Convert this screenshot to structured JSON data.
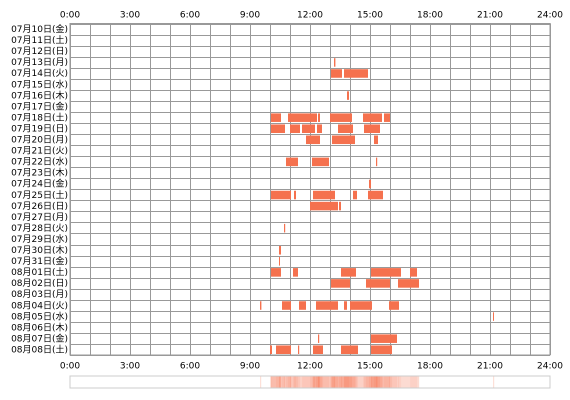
{
  "chart_data": {
    "type": "timeline",
    "color": "#f5714e",
    "xlim": [
      0,
      24
    ],
    "xticks": [
      {
        "value": 0,
        "label": "0:00"
      },
      {
        "value": 3,
        "label": "3:00"
      },
      {
        "value": 6,
        "label": "6:00"
      },
      {
        "value": 9,
        "label": "9:00"
      },
      {
        "value": 12,
        "label": "12:00"
      },
      {
        "value": 15,
        "label": "15:00"
      },
      {
        "value": 18,
        "label": "18:00"
      },
      {
        "value": 21,
        "label": "21:00"
      },
      {
        "value": 24,
        "label": "24:00"
      }
    ],
    "grid_xticks": [
      0,
      1,
      2,
      3,
      4,
      5,
      6,
      7,
      8,
      9,
      10,
      11,
      12,
      13,
      14,
      15,
      16,
      17,
      18,
      19,
      20,
      21,
      22,
      23,
      24
    ],
    "rows": [
      {
        "label": "07月10日(金)",
        "intervals": []
      },
      {
        "label": "07月11日(土)",
        "intervals": []
      },
      {
        "label": "07月12日(日)",
        "intervals": []
      },
      {
        "label": "07月13日(月)",
        "intervals": [
          [
            13.2,
            13.27
          ]
        ]
      },
      {
        "label": "07月14日(火)",
        "intervals": [
          [
            13.05,
            13.6
          ],
          [
            13.7,
            14.9
          ]
        ]
      },
      {
        "label": "07月15日(水)",
        "intervals": []
      },
      {
        "label": "07月16日(木)",
        "intervals": [
          [
            13.85,
            13.95
          ]
        ]
      },
      {
        "label": "07月17日(金)",
        "intervals": []
      },
      {
        "label": "07月18日(土)",
        "intervals": [
          [
            10.05,
            10.55
          ],
          [
            10.9,
            12.35
          ],
          [
            12.4,
            12.5
          ],
          [
            13.0,
            14.1
          ],
          [
            14.65,
            15.6
          ],
          [
            15.7,
            16.0
          ]
        ]
      },
      {
        "label": "07月19日(日)",
        "intervals": [
          [
            10.05,
            10.75
          ],
          [
            11.0,
            11.5
          ],
          [
            11.6,
            12.25
          ],
          [
            12.35,
            12.6
          ],
          [
            13.4,
            14.15
          ],
          [
            14.7,
            15.5
          ]
        ]
      },
      {
        "label": "07月20日(月)",
        "intervals": [
          [
            11.8,
            12.5
          ],
          [
            13.1,
            14.25
          ],
          [
            15.2,
            15.4
          ]
        ]
      },
      {
        "label": "07月21日(火)",
        "intervals": []
      },
      {
        "label": "07月22日(水)",
        "intervals": [
          [
            10.8,
            11.4
          ],
          [
            12.1,
            12.95
          ],
          [
            15.3,
            15.36
          ]
        ]
      },
      {
        "label": "07月23日(木)",
        "intervals": []
      },
      {
        "label": "07月24日(金)",
        "intervals": [
          [
            14.95,
            15.05
          ]
        ]
      },
      {
        "label": "07月25日(土)",
        "intervals": [
          [
            10.05,
            11.05
          ],
          [
            11.2,
            11.3
          ],
          [
            12.15,
            13.25
          ],
          [
            14.15,
            14.35
          ],
          [
            14.9,
            15.65
          ]
        ]
      },
      {
        "label": "07月26日(日)",
        "intervals": [
          [
            12.0,
            13.4
          ],
          [
            13.45,
            13.55
          ]
        ]
      },
      {
        "label": "07月27日(月)",
        "intervals": []
      },
      {
        "label": "07月28日(火)",
        "intervals": [
          [
            10.7,
            10.76
          ]
        ]
      },
      {
        "label": "07月29日(水)",
        "intervals": []
      },
      {
        "label": "07月30日(木)",
        "intervals": [
          [
            10.45,
            10.55
          ]
        ]
      },
      {
        "label": "07月31日(金)",
        "intervals": [
          [
            10.45,
            10.5
          ]
        ]
      },
      {
        "label": "08月01日(土)",
        "intervals": [
          [
            10.05,
            10.55
          ],
          [
            11.15,
            11.4
          ],
          [
            13.55,
            14.3
          ],
          [
            15.05,
            16.55
          ],
          [
            17.0,
            17.35
          ]
        ]
      },
      {
        "label": "08月02日(日)",
        "intervals": [
          [
            13.05,
            14.0
          ],
          [
            14.8,
            16.0
          ],
          [
            16.4,
            17.45
          ]
        ]
      },
      {
        "label": "08月03日(月)",
        "intervals": []
      },
      {
        "label": "08月04日(火)",
        "intervals": [
          [
            9.5,
            9.57
          ],
          [
            10.6,
            11.05
          ],
          [
            11.45,
            11.8
          ],
          [
            12.3,
            13.4
          ],
          [
            13.7,
            13.85
          ],
          [
            14.0,
            15.1
          ],
          [
            15.95,
            16.45
          ]
        ]
      },
      {
        "label": "08月05日(水)",
        "intervals": [
          [
            21.15,
            21.2
          ]
        ]
      },
      {
        "label": "08月06日(木)",
        "intervals": []
      },
      {
        "label": "08月07日(金)",
        "intervals": [
          [
            12.4,
            12.46
          ],
          [
            15.05,
            16.35
          ]
        ]
      },
      {
        "label": "08月08日(土)",
        "intervals": [
          [
            10.0,
            10.1
          ],
          [
            10.3,
            11.05
          ],
          [
            11.4,
            11.46
          ],
          [
            12.15,
            12.65
          ],
          [
            13.55,
            14.4
          ],
          [
            15.05,
            16.1
          ]
        ]
      }
    ]
  }
}
